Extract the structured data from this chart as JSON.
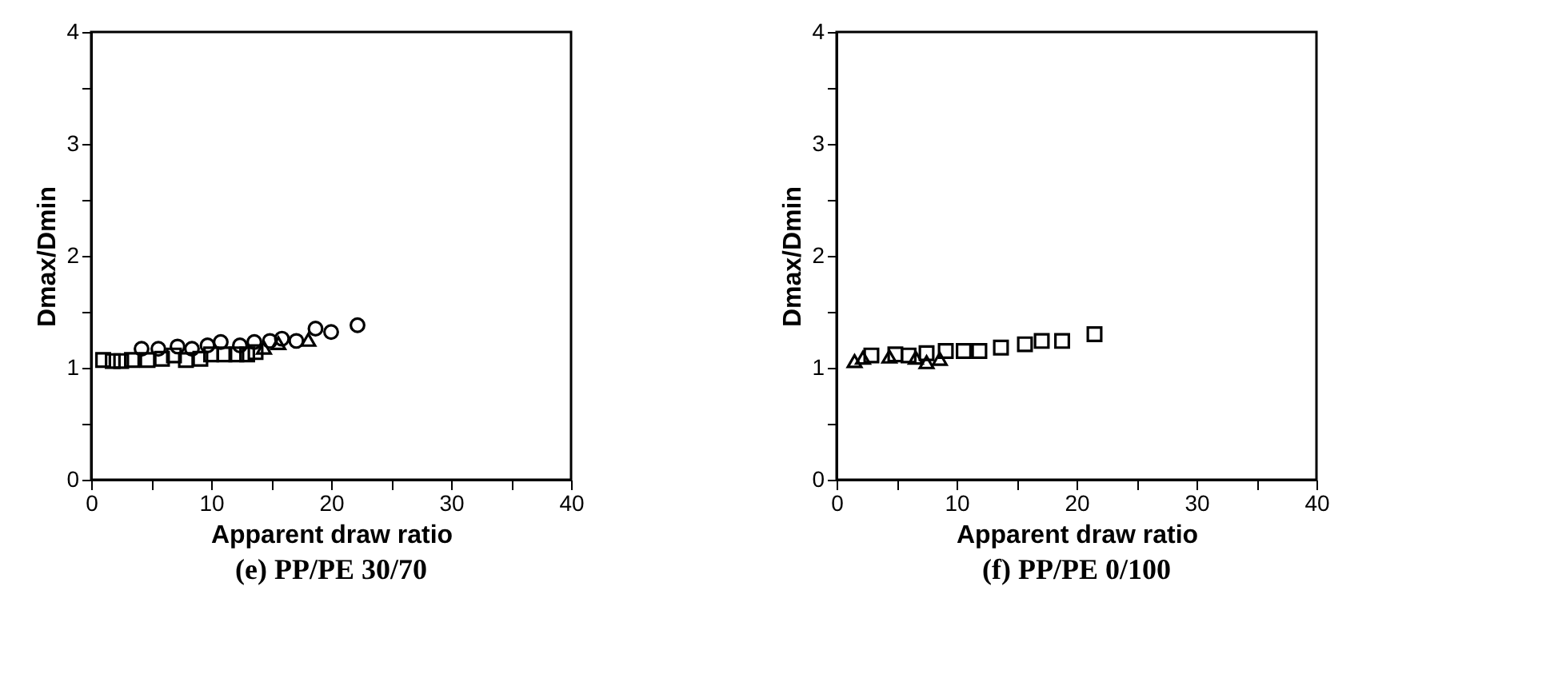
{
  "chart_data": [
    {
      "type": "scatter",
      "title": "(e) PP/PE 30/70",
      "xlabel": "Apparent draw ratio",
      "ylabel": "Dmax/Dmin",
      "xlim": [
        0,
        40
      ],
      "ylim": [
        0,
        4
      ],
      "xticks": [
        0,
        {
          "value": 5,
          "label": null
        },
        10,
        {
          "value": 15,
          "label": null
        },
        20,
        {
          "value": 25,
          "label": null
        },
        30,
        {
          "value": 35,
          "label": null
        },
        40
      ],
      "yticks": [
        0,
        {
          "value": 0.5,
          "label": null
        },
        1,
        {
          "value": 1.5,
          "label": null
        },
        2,
        {
          "value": 2.5,
          "label": null
        },
        3,
        {
          "value": 3.5,
          "label": null
        },
        4
      ],
      "grid": false,
      "series": [
        {
          "color": "#000000",
          "marker": "circle",
          "x": [
            4.2,
            5.6,
            7.2,
            8.4,
            9.7,
            10.8,
            12.4,
            13.6,
            14.9,
            15.9,
            17.1,
            18.7,
            20.0,
            22.2
          ],
          "values": [
            1.17,
            1.17,
            1.19,
            1.17,
            1.2,
            1.23,
            1.2,
            1.23,
            1.24,
            1.26,
            1.24,
            1.35,
            1.32,
            1.38
          ]
        },
        {
          "color": "#000000",
          "marker": "square",
          "x": [
            1.0,
            1.8,
            2.5,
            3.4,
            4.7,
            5.9,
            6.9,
            7.9,
            9.1,
            10.0,
            11.1,
            12.1,
            13.0,
            13.7
          ],
          "values": [
            1.07,
            1.06,
            1.06,
            1.07,
            1.07,
            1.08,
            1.11,
            1.07,
            1.08,
            1.12,
            1.12,
            1.12,
            1.12,
            1.14
          ]
        },
        {
          "color": "#000000",
          "marker": "triangle",
          "x": [
            14.4,
            15.6,
            18.1
          ],
          "values": [
            1.18,
            1.22,
            1.25
          ]
        }
      ]
    },
    {
      "type": "scatter",
      "title": "(f) PP/PE 0/100",
      "xlabel": "Apparent draw ratio",
      "ylabel": "Dmax/Dmin",
      "xlim": [
        0,
        40
      ],
      "ylim": [
        0,
        4
      ],
      "xticks": [
        0,
        {
          "value": 5,
          "label": null
        },
        10,
        {
          "value": 15,
          "label": null
        },
        20,
        {
          "value": 25,
          "label": null
        },
        30,
        {
          "value": 35,
          "label": null
        },
        40
      ],
      "yticks": [
        0,
        {
          "value": 0.5,
          "label": null
        },
        1,
        {
          "value": 1.5,
          "label": null
        },
        2,
        {
          "value": 2.5,
          "label": null
        },
        3,
        {
          "value": 3.5,
          "label": null
        },
        4
      ],
      "grid": false,
      "series": [
        {
          "color": "#000000",
          "marker": "square",
          "x": [
            2.9,
            4.9,
            6.0,
            7.5,
            9.1,
            10.6,
            11.9,
            13.7,
            15.7,
            17.1,
            18.8,
            21.5
          ],
          "values": [
            1.11,
            1.12,
            1.11,
            1.13,
            1.15,
            1.15,
            1.15,
            1.18,
            1.21,
            1.24,
            1.24,
            1.3
          ]
        },
        {
          "color": "#000000",
          "marker": "triangle",
          "x": [
            1.5,
            2.2,
            4.4,
            6.6,
            7.5,
            8.6
          ],
          "values": [
            1.06,
            1.09,
            1.1,
            1.09,
            1.05,
            1.08
          ]
        }
      ]
    }
  ]
}
